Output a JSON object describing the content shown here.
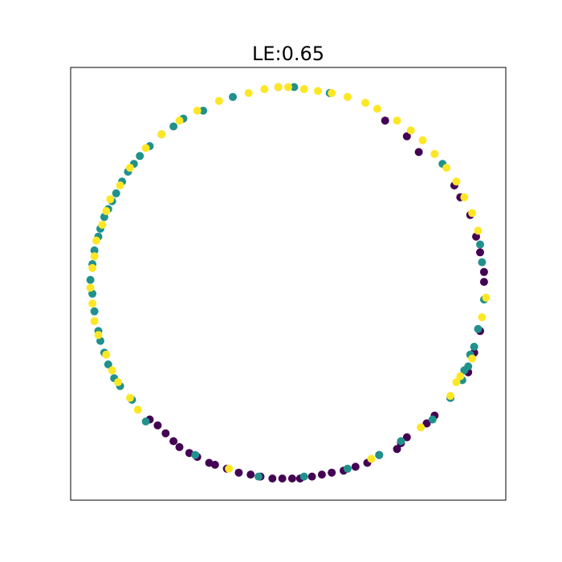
{
  "chart_data": {
    "type": "scatter",
    "title": "LE:0.65",
    "xlabel": "",
    "ylabel": "",
    "xlim": [
      -1.1,
      1.1
    ],
    "ylim": [
      -1.1,
      1.1
    ],
    "ticks_visible": false,
    "grid": false,
    "legend": "none",
    "colors": {
      "class_0": "#440154",
      "class_1": "#21918c",
      "class_2": "#fde725"
    },
    "series": [
      {
        "class": "class_0",
        "points": [
          [
            0.49,
            0.83
          ],
          [
            0.6,
            0.75
          ],
          [
            0.66,
            0.67
          ],
          [
            0.84,
            0.5
          ],
          [
            0.87,
            0.44
          ],
          [
            0.92,
            0.35
          ],
          [
            0.95,
            0.24
          ],
          [
            0.97,
            0.16
          ],
          [
            0.99,
            0.06
          ],
          [
            0.99,
            0.01
          ],
          [
            0.97,
            -0.24
          ],
          [
            0.94,
            -0.35
          ],
          [
            0.91,
            -0.45
          ],
          [
            0.82,
            -0.58
          ],
          [
            0.74,
            -0.67
          ],
          [
            0.7,
            -0.71
          ],
          [
            0.6,
            -0.78
          ],
          [
            0.55,
            -0.84
          ],
          [
            0.46,
            -0.87
          ],
          [
            0.4,
            -0.91
          ],
          [
            0.34,
            -0.93
          ],
          [
            0.28,
            -0.95
          ],
          [
            0.22,
            -0.96
          ],
          [
            0.17,
            -0.97
          ],
          [
            0.12,
            -0.98
          ],
          [
            0.06,
            -0.99
          ],
          [
            0.02,
            -0.99
          ],
          [
            -0.03,
            -0.99
          ],
          [
            -0.08,
            -0.99
          ],
          [
            -0.14,
            -0.98
          ],
          [
            -0.19,
            -0.97
          ],
          [
            -0.25,
            -0.96
          ],
          [
            -0.31,
            -0.94
          ],
          [
            -0.37,
            -0.92
          ],
          [
            -0.4,
            -0.91
          ],
          [
            -0.46,
            -0.88
          ],
          [
            -0.5,
            -0.86
          ],
          [
            -0.55,
            -0.83
          ],
          [
            -0.58,
            -0.8
          ],
          [
            -0.62,
            -0.76
          ],
          [
            -0.66,
            -0.72
          ],
          [
            -0.7,
            -0.69
          ],
          [
            0.57,
            -0.81
          ],
          [
            0.7,
            -0.71
          ]
        ]
      },
      {
        "class": "class_1",
        "points": [
          [
            0.03,
            1.0
          ],
          [
            -0.05,
            1.0
          ],
          [
            -0.28,
            0.95
          ],
          [
            -0.43,
            0.88
          ],
          [
            -0.53,
            0.84
          ],
          [
            -0.58,
            0.8
          ],
          [
            -0.64,
            0.76
          ],
          [
            -0.7,
            0.7
          ],
          [
            -0.75,
            0.65
          ],
          [
            -0.78,
            0.61
          ],
          [
            -0.81,
            0.57
          ],
          [
            -0.84,
            0.52
          ],
          [
            -0.87,
            0.46
          ],
          [
            -0.89,
            0.42
          ],
          [
            -0.91,
            0.38
          ],
          [
            -0.93,
            0.34
          ],
          [
            -0.95,
            0.28
          ],
          [
            -0.96,
            0.24
          ],
          [
            -0.98,
            0.17
          ],
          [
            -0.99,
            0.1
          ],
          [
            -1.0,
            0.02
          ],
          [
            -0.99,
            -0.05
          ],
          [
            -0.98,
            -0.14
          ],
          [
            -0.96,
            -0.24
          ],
          [
            -0.95,
            -0.29
          ],
          [
            -0.93,
            -0.35
          ],
          [
            -0.91,
            -0.41
          ],
          [
            -0.88,
            -0.48
          ],
          [
            -0.85,
            -0.52
          ],
          [
            -0.79,
            -0.59
          ],
          [
            -0.72,
            -0.7
          ],
          [
            -0.47,
            -0.87
          ],
          [
            -0.15,
            -0.98
          ],
          [
            0.08,
            -0.98
          ],
          [
            0.3,
            -0.94
          ],
          [
            0.46,
            -0.87
          ],
          [
            0.57,
            -0.8
          ],
          [
            0.73,
            -0.69
          ],
          [
            0.82,
            -0.58
          ],
          [
            0.88,
            -0.49
          ],
          [
            0.91,
            -0.42
          ],
          [
            0.94,
            -0.32
          ],
          [
            0.96,
            -0.23
          ],
          [
            0.99,
            -0.08
          ],
          [
            0.98,
            0.11
          ],
          [
            0.97,
            0.2
          ],
          [
            0.78,
            0.61
          ],
          [
            0.21,
            0.97
          ],
          [
            0.92,
            -0.36
          ],
          [
            0.89,
            -0.44
          ]
        ]
      },
      {
        "class": "class_2",
        "points": [
          [
            -0.05,
            1.0
          ],
          [
            0.0,
            1.0
          ],
          [
            0.08,
            0.99
          ],
          [
            0.15,
            0.98
          ],
          [
            0.22,
            0.97
          ],
          [
            0.3,
            0.95
          ],
          [
            0.39,
            0.92
          ],
          [
            0.45,
            0.89
          ],
          [
            0.55,
            0.83
          ],
          [
            0.62,
            0.78
          ],
          [
            0.68,
            0.73
          ],
          [
            0.74,
            0.66
          ],
          [
            0.8,
            0.59
          ],
          [
            0.85,
            0.52
          ],
          [
            0.89,
            0.44
          ],
          [
            0.93,
            0.36
          ],
          [
            0.96,
            0.27
          ],
          [
            1.0,
            -0.07
          ],
          [
            0.98,
            -0.17
          ],
          [
            0.93,
            -0.38
          ],
          [
            0.85,
            -0.5
          ],
          [
            -0.12,
            0.99
          ],
          [
            -0.2,
            0.97
          ],
          [
            -0.35,
            0.93
          ],
          [
            -0.46,
            0.88
          ],
          [
            -0.55,
            0.83
          ],
          [
            -0.64,
            0.76
          ],
          [
            -0.72,
            0.69
          ],
          [
            -0.8,
            0.59
          ],
          [
            -0.85,
            0.5
          ],
          [
            -0.9,
            0.43
          ],
          [
            -0.92,
            0.37
          ],
          [
            -0.94,
            0.3
          ],
          [
            -0.97,
            0.22
          ],
          [
            -0.98,
            0.14
          ],
          [
            -0.99,
            0.08
          ],
          [
            -1.0,
            -0.02
          ],
          [
            -0.99,
            -0.1
          ],
          [
            -0.98,
            -0.19
          ],
          [
            -0.96,
            -0.26
          ],
          [
            -0.92,
            -0.36
          ],
          [
            -0.89,
            -0.44
          ],
          [
            -0.86,
            -0.5
          ],
          [
            -0.8,
            -0.58
          ],
          [
            -0.76,
            -0.64
          ],
          [
            -0.3,
            -0.94
          ],
          [
            0.42,
            -0.89
          ],
          [
            0.67,
            -0.73
          ],
          [
            0.82,
            -0.57
          ],
          [
            0.87,
            -0.47
          ]
        ]
      }
    ]
  }
}
